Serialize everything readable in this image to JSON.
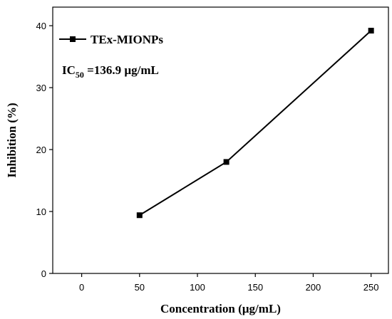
{
  "chart_data": {
    "type": "line",
    "xlabel": "Concentration (µg/mL)",
    "ylabel": "Inhibition (%)",
    "xlim": [
      -25,
      265
    ],
    "ylim": [
      0,
      43
    ],
    "xticks": [
      0,
      50,
      100,
      150,
      200,
      250
    ],
    "yticks": [
      0,
      10,
      20,
      30,
      40
    ],
    "grid": false,
    "legend_position": "top-left",
    "series": [
      {
        "name": "TEx-MIONPs",
        "marker": "square",
        "color": "#000000",
        "x": [
          50,
          125,
          250
        ],
        "y": [
          9.4,
          18.0,
          39.2
        ]
      }
    ],
    "annotation": {
      "prefix": "IC",
      "subscript": "50",
      "suffix": " =136.9 µg/mL"
    }
  }
}
